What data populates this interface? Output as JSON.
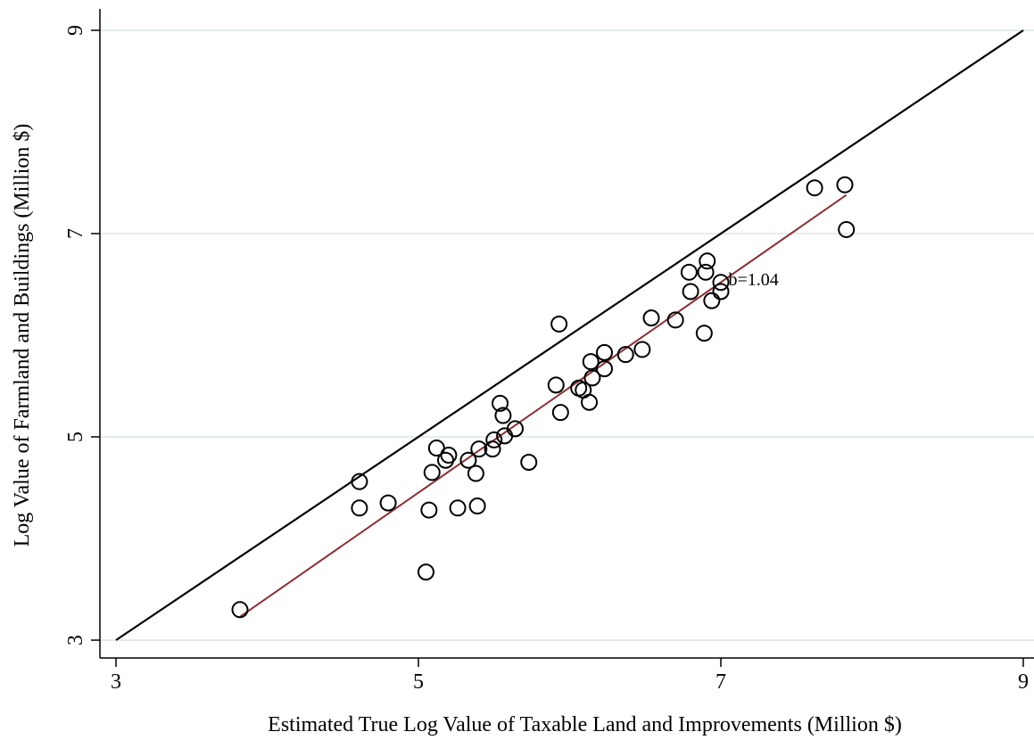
{
  "chart_data": {
    "type": "scatter",
    "title": "",
    "xlabel": "Estimated True Log Value of Taxable Land and Improvements (Million $)",
    "ylabel": "Log Value of Farmland and Buildings (Million $)",
    "xlim": [
      3,
      9
    ],
    "ylim": [
      3,
      9
    ],
    "xticks": [
      3,
      5,
      7,
      9
    ],
    "yticks": [
      3,
      5,
      7,
      9
    ],
    "grid": "horizontal",
    "legend": "none",
    "series": [
      {
        "marker": "hollow-circle",
        "x": [
          3.82,
          4.61,
          4.61,
          4.8,
          5.05,
          5.07,
          5.09,
          5.12,
          5.18,
          5.2,
          5.26,
          5.33,
          5.38,
          5.39,
          5.4,
          5.49,
          5.5,
          5.54,
          5.56,
          5.57,
          5.64,
          5.73,
          5.91,
          5.93,
          5.94,
          6.06,
          6.09,
          6.13,
          6.14,
          6.15,
          6.23,
          6.23,
          6.37,
          6.48,
          6.54,
          6.7,
          6.79,
          6.8,
          6.89,
          6.9,
          6.91,
          6.94,
          7.0,
          7.0,
          7.62,
          7.82,
          7.83
        ],
        "y": [
          3.3,
          4.3,
          4.56,
          4.35,
          3.67,
          4.28,
          4.65,
          4.89,
          4.77,
          4.82,
          4.3,
          4.77,
          4.64,
          4.32,
          4.88,
          4.88,
          4.97,
          5.33,
          5.21,
          5.01,
          5.08,
          4.75,
          5.51,
          6.11,
          5.24,
          5.48,
          5.46,
          5.34,
          5.74,
          5.58,
          5.67,
          5.83,
          5.81,
          5.86,
          6.17,
          6.15,
          6.62,
          6.43,
          6.02,
          6.62,
          6.73,
          6.34,
          6.43,
          6.52,
          7.45,
          7.48,
          7.04
        ]
      }
    ],
    "reference_line": {
      "x": [
        3,
        9
      ],
      "y": [
        3,
        9
      ],
      "color": "#000000"
    },
    "fit_line": {
      "x": [
        3.82,
        7.83
      ],
      "y": [
        3.23,
        7.38
      ],
      "color": "#8b2f35"
    },
    "annotation": {
      "text": "b=1.04",
      "x": 7.05,
      "y": 6.49
    },
    "colors": {
      "marker": "#000000",
      "axis": "#000000",
      "grid": "#e4ecee"
    }
  }
}
